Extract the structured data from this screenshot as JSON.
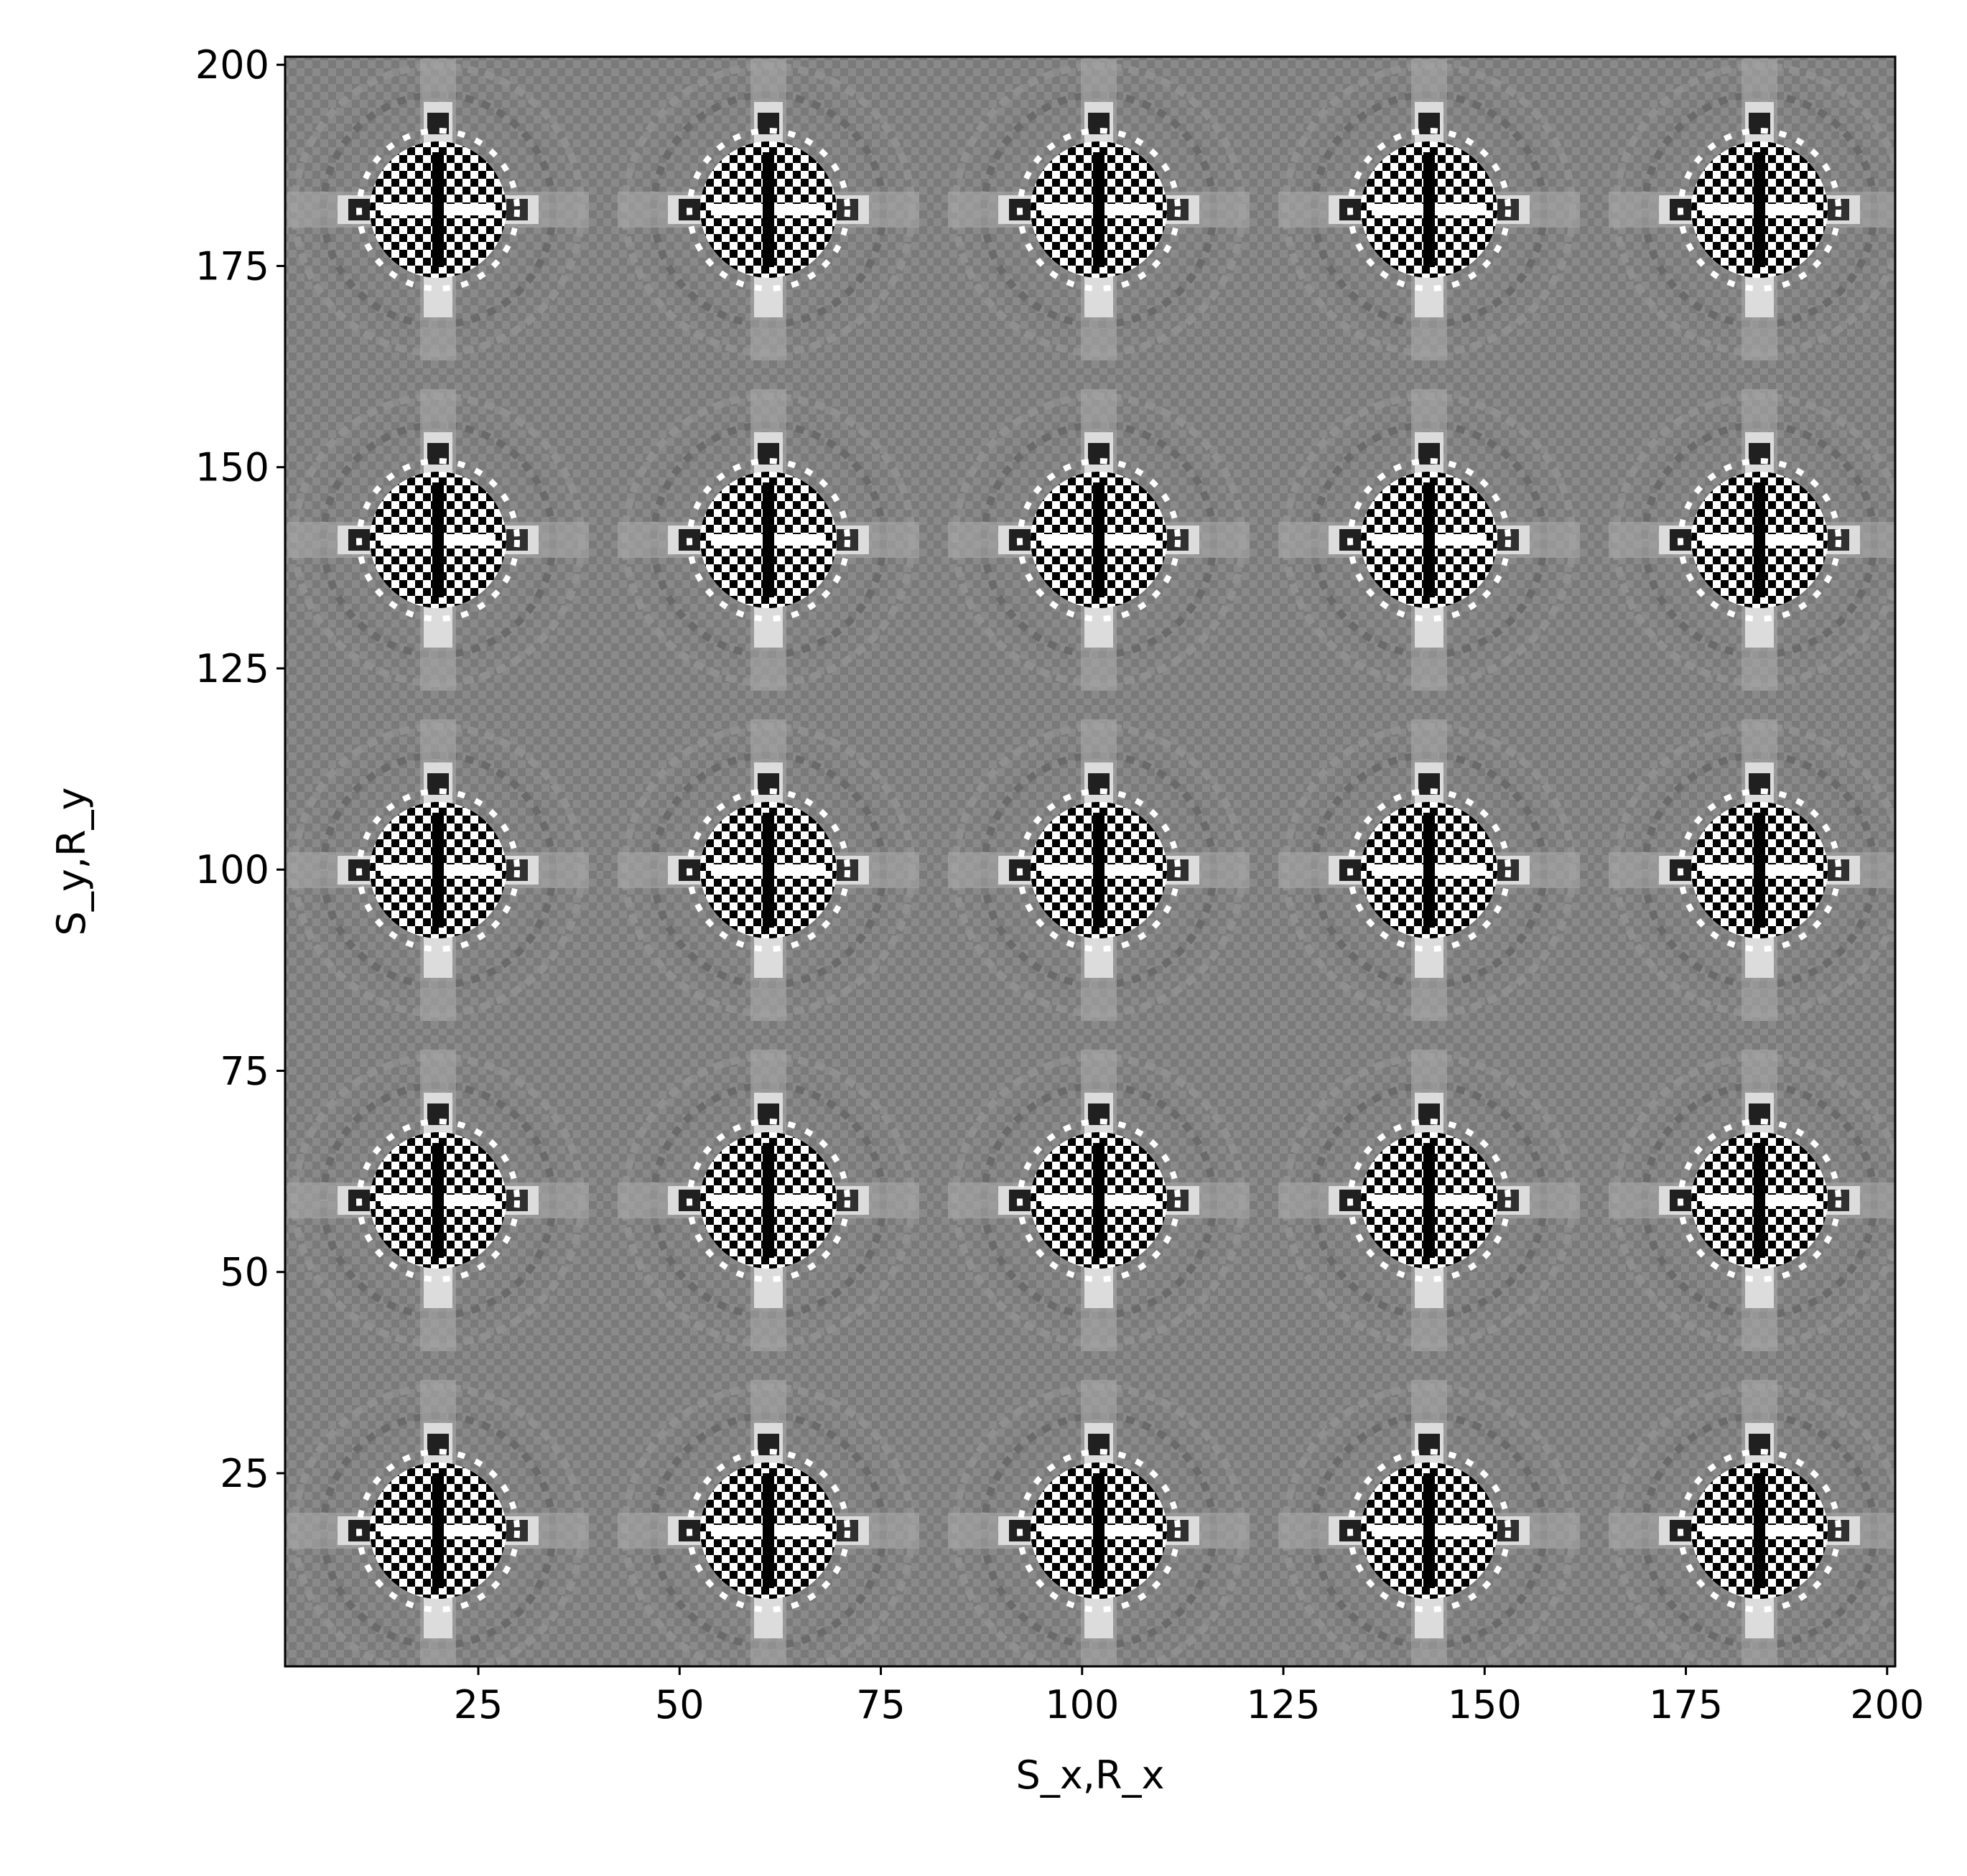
{
  "chart_data": {
    "type": "image",
    "xlabel": "S_x,R_x",
    "ylabel": "S_y,R_y",
    "xlim": [
      1,
      201
    ],
    "ylim": [
      1,
      201
    ],
    "xticks": [
      25,
      50,
      75,
      100,
      125,
      150,
      175,
      200
    ],
    "yticks": [
      25,
      50,
      75,
      100,
      125,
      150,
      175,
      200
    ],
    "colormap": "gray"
  }
}
